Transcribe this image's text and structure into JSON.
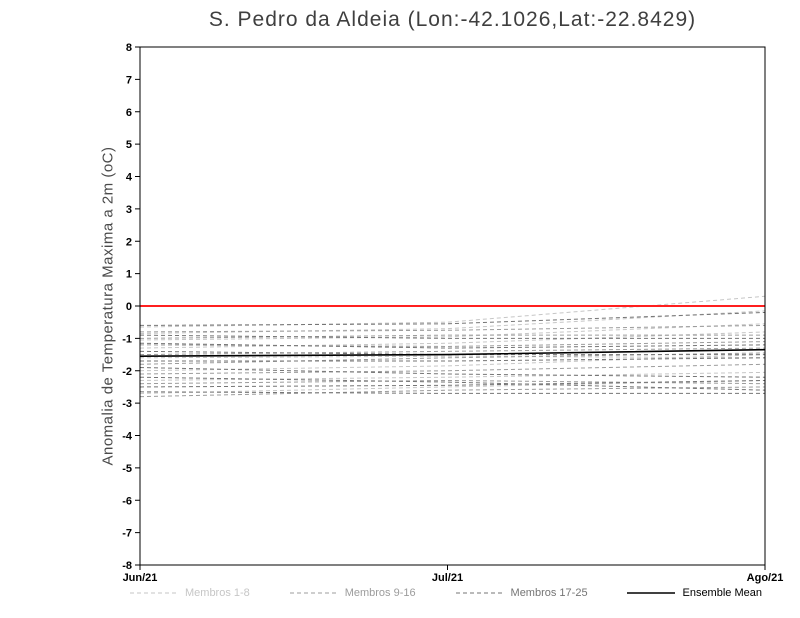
{
  "chart_data": {
    "type": "line",
    "title": "S. Pedro da Aldeia (Lon:-42.1026,Lat:-22.8429)",
    "ylabel": "Anomalia de Temperatura Maxima a 2m (oC)",
    "xlabel": "",
    "categories": [
      "Jun/21",
      "Jul/21",
      "Ago/21"
    ],
    "ylim": [
      -8,
      8
    ],
    "y_tick_step": 1,
    "grid": false,
    "legend_position": "bottom",
    "zero_line": {
      "color": "#ff1f1f",
      "values": [
        0,
        0,
        0
      ]
    },
    "groups": [
      {
        "name": "Membros 1-8",
        "color": "#c6c6c6",
        "line_style": "dashed",
        "members": [
          [
            -0.65,
            -0.5,
            0.3
          ],
          [
            -0.85,
            -0.7,
            -0.15
          ],
          [
            -1.05,
            -0.95,
            -0.55
          ],
          [
            -1.3,
            -1.15,
            -0.8
          ],
          [
            -1.6,
            -1.55,
            -1.6
          ],
          [
            -2.0,
            -1.85,
            -1.5
          ],
          [
            -2.3,
            -2.2,
            -2.05
          ],
          [
            -2.7,
            -2.5,
            -2.3
          ]
        ]
      },
      {
        "name": "Membros 9-16",
        "color": "#9c9c9c",
        "line_style": "dashed",
        "members": [
          [
            -0.8,
            -0.75,
            -0.6
          ],
          [
            -1.0,
            -0.9,
            -0.9
          ],
          [
            -1.2,
            -1.25,
            -1.1
          ],
          [
            -1.5,
            -1.4,
            -1.3
          ],
          [
            -1.8,
            -1.6,
            -1.45
          ],
          [
            -2.1,
            -2.0,
            -1.8
          ],
          [
            -2.4,
            -2.3,
            -2.4
          ],
          [
            -2.8,
            -2.6,
            -2.5
          ]
        ]
      },
      {
        "name": "Membros 17-25",
        "color": "#757575",
        "line_style": "dashed",
        "members": [
          [
            -0.6,
            -0.55,
            -0.2
          ],
          [
            -0.9,
            -1.0,
            -1.0
          ],
          [
            -1.15,
            -1.3,
            -1.2
          ],
          [
            -1.4,
            -1.5,
            -1.5
          ],
          [
            -1.7,
            -1.7,
            -1.6
          ],
          [
            -1.9,
            -2.1,
            -2.2
          ],
          [
            -2.2,
            -2.35,
            -2.6
          ],
          [
            -2.5,
            -2.45,
            -2.3
          ],
          [
            -2.65,
            -2.7,
            -2.7
          ]
        ]
      }
    ],
    "ensemble_mean": {
      "name": "Ensemble Mean",
      "color": "#000000",
      "line_style": "solid",
      "values": [
        -1.55,
        -1.5,
        -1.35
      ]
    }
  }
}
